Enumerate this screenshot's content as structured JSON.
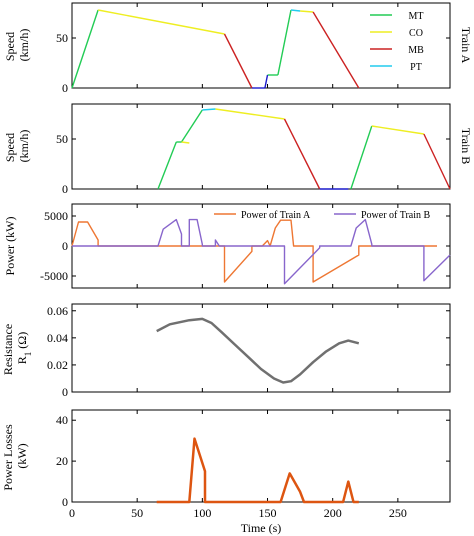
{
  "chart_data": [
    {
      "id": "speed-a",
      "type": "line",
      "ylabel": "Speed\n(km/h)",
      "side_label": "Train A",
      "xlim": [
        0,
        290
      ],
      "ylim": [
        0,
        85
      ],
      "yticks": [
        0,
        50
      ],
      "legend": {
        "placement": "top-right",
        "entries": [
          "MT",
          "CO",
          "MB",
          "PT"
        ]
      },
      "series": [
        {
          "name": "MT",
          "color": "#22cc55",
          "segments": [
            [
              [
                0,
                0
              ],
              [
                20,
                78
              ]
            ],
            [
              [
                150,
                13
              ],
              [
                158,
                13
              ]
            ],
            [
              [
                158,
                13
              ],
              [
                168,
                78
              ]
            ]
          ]
        },
        {
          "name": "CO",
          "color": "#eeee22",
          "segments": [
            [
              [
                20,
                78
              ],
              [
                117,
                54
              ]
            ],
            [
              [
                175,
                77
              ],
              [
                185,
                76
              ]
            ]
          ]
        },
        {
          "name": "MB",
          "color": "#cc2222",
          "segments": [
            [
              [
                117,
                54
              ],
              [
                138,
                0
              ]
            ],
            [
              [
                185,
                76
              ],
              [
                220,
                0
              ]
            ]
          ]
        },
        {
          "name": "PT",
          "color": "#22ccee",
          "segments": [
            [
              [
                168,
                78
              ],
              [
                175,
                77
              ]
            ]
          ]
        },
        {
          "name": "",
          "color": "#1a1acc",
          "segments": [
            [
              [
                138,
                0
              ],
              [
                148,
                0
              ]
            ],
            [
              [
                148,
                0
              ],
              [
                150,
                13
              ]
            ]
          ]
        }
      ]
    },
    {
      "id": "speed-b",
      "type": "line",
      "ylabel": "Speed\n(km/h)",
      "side_label": "Train B",
      "xlim": [
        0,
        290
      ],
      "ylim": [
        0,
        85
      ],
      "yticks": [
        0,
        50
      ],
      "series": [
        {
          "name": "MT",
          "color": "#22cc55",
          "segments": [
            [
              [
                66,
                0
              ],
              [
                80,
                47
              ]
            ],
            [
              [
                80,
                47
              ],
              [
                84,
                47
              ]
            ],
            [
              [
                84,
                47
              ],
              [
                100,
                79
              ]
            ],
            [
              [
                240,
                62
              ],
              [
                240,
                62
              ]
            ],
            [
              [
                214,
                0
              ],
              [
                230,
                63
              ]
            ]
          ]
        },
        {
          "name": "CO",
          "color": "#eeee22",
          "segments": [
            [
              [
                84,
                47
              ],
              [
                90,
                46
              ]
            ],
            [
              [
                110,
                80
              ],
              [
                163,
                70
              ]
            ],
            [
              [
                230,
                63
              ],
              [
                270,
                55
              ]
            ]
          ]
        },
        {
          "name": "MB",
          "color": "#cc2222",
          "segments": [
            [
              [
                163,
                70
              ],
              [
                190,
                0
              ]
            ],
            [
              [
                270,
                55
              ],
              [
                290,
                0
              ]
            ]
          ]
        },
        {
          "name": "PT",
          "color": "#22ccee",
          "segments": [
            [
              [
                100,
                79
              ],
              [
                110,
                80
              ]
            ]
          ]
        },
        {
          "name": "",
          "color": "#1a1acc",
          "segments": [
            [
              [
                190,
                0
              ],
              [
                212,
                0
              ]
            ]
          ]
        }
      ]
    },
    {
      "id": "power",
      "type": "line",
      "ylabel": "Power (kW)",
      "xlim": [
        0,
        290
      ],
      "ylim": [
        -7000,
        7000
      ],
      "yticks": [
        -5000,
        0,
        5000
      ],
      "legend": {
        "placement": "top-right",
        "entries": [
          "Power of Train A",
          "Power of Train B"
        ]
      },
      "series": [
        {
          "name": "Power of Train A",
          "color": "#ee7733",
          "points": [
            [
              0,
              0
            ],
            [
              5,
              4000
            ],
            [
              12,
              4000
            ],
            [
              20,
              1000
            ],
            [
              20,
              0
            ],
            [
              117,
              0
            ],
            [
              117,
              -6000
            ],
            [
              138,
              -900
            ],
            [
              138,
              0
            ],
            [
              146,
              0
            ],
            [
              150,
              900
            ],
            [
              152,
              0
            ],
            [
              156,
              3000
            ],
            [
              160,
              4300
            ],
            [
              168,
              4300
            ],
            [
              170,
              0
            ],
            [
              175,
              0
            ],
            [
              185,
              0
            ],
            [
              185,
              -6000
            ],
            [
              220,
              -1500
            ],
            [
              220,
              0
            ],
            [
              280,
              0
            ]
          ]
        },
        {
          "name": "Power of Train B",
          "color": "#8866cc",
          "points": [
            [
              0,
              0
            ],
            [
              66,
              0
            ],
            [
              70,
              2800
            ],
            [
              80,
              4400
            ],
            [
              84,
              2000
            ],
            [
              84,
              0
            ],
            [
              90,
              0
            ],
            [
              90,
              4400
            ],
            [
              96,
              4400
            ],
            [
              100,
              300
            ],
            [
              100,
              0
            ],
            [
              110,
              0
            ],
            [
              110,
              1000
            ],
            [
              113,
              0
            ],
            [
              163,
              0
            ],
            [
              163,
              -6300
            ],
            [
              190,
              -300
            ],
            [
              190,
              0
            ],
            [
              214,
              0
            ],
            [
              218,
              3000
            ],
            [
              225,
              4400
            ],
            [
              230,
              300
            ],
            [
              230,
              0
            ],
            [
              270,
              0
            ],
            [
              270,
              -5800
            ],
            [
              290,
              -1500
            ]
          ]
        }
      ]
    },
    {
      "id": "resistance",
      "type": "line",
      "ylabel": "Resistance\nR (Ω)",
      "ylabel_sub": "1",
      "xlim": [
        0,
        290
      ],
      "ylim": [
        0,
        0.065
      ],
      "yticks": [
        0,
        0.02,
        0.04,
        0.06
      ],
      "series": [
        {
          "name": "",
          "color": "#707070",
          "points": [
            [
              65,
              0.045
            ],
            [
              75,
              0.05
            ],
            [
              90,
              0.053
            ],
            [
              100,
              0.054
            ],
            [
              107,
              0.051
            ],
            [
              115,
              0.044
            ],
            [
              125,
              0.035
            ],
            [
              135,
              0.026
            ],
            [
              145,
              0.017
            ],
            [
              155,
              0.01
            ],
            [
              162,
              0.007
            ],
            [
              168,
              0.008
            ],
            [
              175,
              0.013
            ],
            [
              185,
              0.022
            ],
            [
              195,
              0.03
            ],
            [
              205,
              0.036
            ],
            [
              212,
              0.038
            ],
            [
              220,
              0.036
            ]
          ]
        }
      ]
    },
    {
      "id": "losses",
      "type": "line",
      "ylabel": "Power Losses\n(kW)",
      "xlabel": "Time (s)",
      "xlim": [
        0,
        290
      ],
      "ylim": [
        0,
        45
      ],
      "yticks": [
        0,
        20,
        40
      ],
      "xticks": [
        0,
        50,
        100,
        150,
        200,
        250
      ],
      "series": [
        {
          "name": "",
          "color": "#dd5511",
          "points": [
            [
              65,
              0
            ],
            [
              90,
              0
            ],
            [
              94,
              31
            ],
            [
              102,
              15
            ],
            [
              102,
              0
            ],
            [
              160,
              0
            ],
            [
              167,
              14
            ],
            [
              175,
              5
            ],
            [
              178,
              0
            ],
            [
              208,
              0
            ],
            [
              212,
              10
            ],
            [
              216,
              0
            ],
            [
              220,
              0
            ]
          ]
        }
      ]
    }
  ]
}
